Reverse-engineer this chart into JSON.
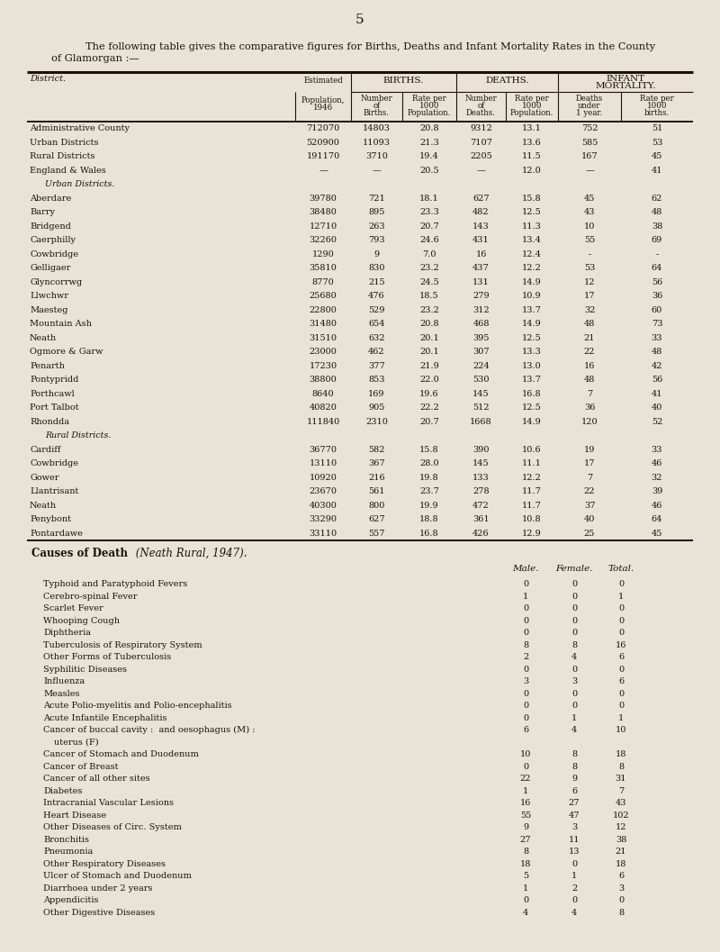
{
  "bg_color": "#e8e3d5",
  "page_number": "5",
  "title1": "The following table gives the comparative figures for Births, Deaths and Infant Mortality Rates in the County",
  "title2": "of Glamorgan :—",
  "t1_rows": [
    [
      "Administrative County",
      "712070",
      "14803",
      "20.8",
      "9312",
      "13.1",
      "752",
      "51"
    ],
    [
      "Urban Districts",
      "520900",
      "11093",
      "21.3",
      "7107",
      "13.6",
      "585",
      "53"
    ],
    [
      "Rural Districts",
      "191170",
      "3710",
      "19.4",
      "2205",
      "11.5",
      "167",
      "45"
    ],
    [
      "England & Wales",
      "—",
      "—",
      "20.5",
      "—",
      "12.0",
      "—",
      "41"
    ],
    [
      "__section__Urban Districts.",
      "",
      "",
      "",
      "",
      "",
      "",
      ""
    ],
    [
      "Aberdare",
      "39780",
      "721",
      "18.1",
      "627",
      "15.8",
      "45",
      "62"
    ],
    [
      "Barry",
      "38480",
      "895",
      "23.3",
      "482",
      "12.5",
      "43",
      "48"
    ],
    [
      "Bridgend",
      "12710",
      "263",
      "20.7",
      "143",
      "11.3",
      "10",
      "38"
    ],
    [
      "Caerphilly",
      "32260",
      "793",
      "24.6",
      "431",
      "13.4",
      "55",
      "69"
    ],
    [
      "Cowbridge",
      "1290",
      "9",
      "7.0",
      "16",
      "12.4",
      "-",
      "-"
    ],
    [
      "Gelligaer",
      "35810",
      "830",
      "23.2",
      "437",
      "12.2",
      "53",
      "64"
    ],
    [
      "Glyncorrwg",
      "8770",
      "215",
      "24.5",
      "131",
      "14.9",
      "12",
      "56"
    ],
    [
      "Llwchwr",
      "25680",
      "476",
      "18.5",
      "279",
      "10.9",
      "17",
      "36"
    ],
    [
      "Maesteg",
      "22800",
      "529",
      "23.2",
      "312",
      "13.7",
      "32",
      "60"
    ],
    [
      "Mountain Ash",
      "31480",
      "654",
      "20.8",
      "468",
      "14.9",
      "48",
      "73"
    ],
    [
      "Neath",
      "31510",
      "632",
      "20.1",
      "395",
      "12.5",
      "21",
      "33"
    ],
    [
      "Ogmore & Garw",
      "23000",
      "462",
      "20.1",
      "307",
      "13.3",
      "22",
      "48"
    ],
    [
      "Penarth",
      "17230",
      "377",
      "21.9",
      "224",
      "13.0",
      "16",
      "42"
    ],
    [
      "Pontypridd",
      "38800",
      "853",
      "22.0",
      "530",
      "13.7",
      "48",
      "56"
    ],
    [
      "Porthcawl",
      "8640",
      "169",
      "19.6",
      "145",
      "16.8",
      "7",
      "41"
    ],
    [
      "Port Talbot",
      "40820",
      "905",
      "22.2",
      "512",
      "12.5",
      "36",
      "40"
    ],
    [
      "Rhondda",
      "111840",
      "2310",
      "20.7",
      "1668",
      "14.9",
      "120",
      "52"
    ],
    [
      "__section__Rural Districts.",
      "",
      "",
      "",
      "",
      "",
      "",
      ""
    ],
    [
      "Cardiff",
      "36770",
      "582",
      "15.8",
      "390",
      "10.6",
      "19",
      "33"
    ],
    [
      "Cowbridge",
      "13110",
      "367",
      "28.0",
      "145",
      "11.1",
      "17",
      "46"
    ],
    [
      "Gower",
      "10920",
      "216",
      "19.8",
      "133",
      "12.2",
      "7",
      "32"
    ],
    [
      "Llantrisant",
      "23670",
      "561",
      "23.7",
      "278",
      "11.7",
      "22",
      "39"
    ],
    [
      "Neath",
      "40300",
      "800",
      "19.9",
      "472",
      "11.7",
      "37",
      "46"
    ],
    [
      "Penybont",
      "33290",
      "627",
      "18.8",
      "361",
      "10.8",
      "40",
      "64"
    ],
    [
      "Pontardawe",
      "33110",
      "557",
      "16.8",
      "426",
      "12.9",
      "25",
      "45"
    ]
  ],
  "t2_rows": [
    [
      "Typhoid and Paratyphoid Fevers",
      "0",
      "0",
      "0"
    ],
    [
      "Cerebro-spinal Fever",
      "1",
      "0",
      "1"
    ],
    [
      "Scarlet Fever",
      "0",
      "0",
      "0"
    ],
    [
      "Whooping Cough",
      "0",
      "0",
      "0"
    ],
    [
      "Diphtheria",
      "0",
      "0",
      "0"
    ],
    [
      "Tuberculosis of Respiratory System",
      "8",
      "8",
      "16"
    ],
    [
      "Other Forms of Tuberculosis",
      "2",
      "4",
      "6"
    ],
    [
      "Syphilitic Diseases",
      "0",
      "0",
      "0"
    ],
    [
      "Influenza",
      "3",
      "3",
      "6"
    ],
    [
      "Measles",
      "0",
      "0",
      "0"
    ],
    [
      "Acute Polio-myelitis and Polio-encephalitis",
      "0",
      "0",
      "0"
    ],
    [
      "Acute Infantile Encephalitis",
      "0",
      "1",
      "1"
    ],
    [
      "Cancer of buccal cavity :  and oesophagus (M) :",
      "6",
      "4",
      "10"
    ],
    [
      "        uterus (F)",
      "",
      "",
      ""
    ],
    [
      "Cancer of Stomach and Duodenum",
      "10",
      "8",
      "18"
    ],
    [
      "Cancer of Breast",
      "0",
      "8",
      "8"
    ],
    [
      "Cancer of all other sites",
      "22",
      "9",
      "31"
    ],
    [
      "Diabetes",
      "1",
      "6",
      "7"
    ],
    [
      "Intracranial Vascular Lesions",
      "16",
      "27",
      "43"
    ],
    [
      "Heart Disease",
      "55",
      "47",
      "102"
    ],
    [
      "Other Diseases of Circ. System",
      "9",
      "3",
      "12"
    ],
    [
      "Bronchitis",
      "27",
      "11",
      "38"
    ],
    [
      "Pneumonia",
      "8",
      "13",
      "21"
    ],
    [
      "Other Respiratory Diseases",
      "18",
      "0",
      "18"
    ],
    [
      "Ulcer of Stomach and Duodenum",
      "5",
      "1",
      "6"
    ],
    [
      "Diarrhoea under 2 years",
      "1",
      "2",
      "3"
    ],
    [
      "Appendicitis",
      "0",
      "0",
      "0"
    ],
    [
      "Other Digestive Diseases",
      "4",
      "4",
      "8"
    ]
  ],
  "col_bounds": [
    30,
    328,
    390,
    447,
    507,
    562,
    620,
    690,
    770
  ],
  "text_color": "#1a1208",
  "line_color": "#1a1208"
}
